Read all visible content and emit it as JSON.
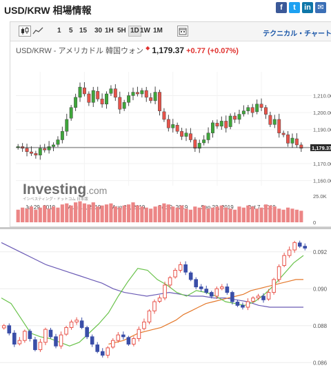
{
  "page_title": "USD/KRW 相場情報",
  "share_icons": [
    "facebook-icon",
    "twitter-icon",
    "linkedin-icon",
    "email-icon"
  ],
  "toolbar": {
    "timeframes": [
      "1",
      "5",
      "15",
      "30",
      "1H",
      "5H",
      "1D",
      "1W",
      "1M"
    ],
    "active_timeframe": "1D",
    "tech_link": "テクニカル・チャート"
  },
  "quote": {
    "name": "USD/KRW - アメリカドル 韓国ウォン",
    "price": "1,179.37",
    "change": "+0.77",
    "change_pct": "(+0.07%)"
  },
  "watermark": {
    "brand": "Investing",
    "suffix": ".com",
    "sub": "インベスティング・ドットコム 日本版"
  },
  "colors": {
    "up": "#e8534a",
    "down": "#3ea63a",
    "volume": "#ec8686",
    "accent": "#1a56a8"
  },
  "chart_data": [
    {
      "type": "candlestick",
      "title": "USD/KRW",
      "x_ticks": [
        "Jul 29, 2019",
        "Aug 12, 2019",
        "Aug 26, 2019",
        "Sep 9, 2019",
        "Sep 23, 2019",
        "Oct 7, 2019"
      ],
      "y_ticks": [
        1160,
        1170,
        1180,
        1190,
        1200,
        1210
      ],
      "y_tick_labels": [
        "1,160.00",
        "1,170.00",
        "1,180.00",
        "1,190.00",
        "1,200.00",
        "1,210.00"
      ],
      "last_price_label": "1,179.37",
      "last_price": 1179.37,
      "ylim": [
        1157,
        1224
      ],
      "closes": [
        1180,
        1179,
        1177,
        1176,
        1175,
        1179,
        1178,
        1180,
        1181,
        1184,
        1189,
        1196,
        1203,
        1209,
        1215,
        1211,
        1206,
        1213,
        1208,
        1205,
        1211,
        1214,
        1209,
        1202,
        1206,
        1210,
        1212,
        1211,
        1213,
        1209,
        1207,
        1212,
        1201,
        1196,
        1191,
        1193,
        1189,
        1186,
        1188,
        1184,
        1179,
        1182,
        1184,
        1188,
        1194,
        1192,
        1195,
        1191,
        1198,
        1196,
        1199,
        1201,
        1203,
        1200,
        1205,
        1203,
        1199,
        1193,
        1196,
        1188,
        1187,
        1182,
        1185,
        1181,
        1179
      ],
      "volume_label": "25.0K",
      "volume_ylim": [
        0,
        25
      ],
      "volumes": [
        12,
        14,
        13,
        15,
        12,
        14,
        16,
        13,
        15,
        14,
        17,
        18,
        16,
        19,
        20,
        18,
        17,
        19,
        15,
        16,
        17,
        18,
        15,
        14,
        16,
        17,
        19,
        16,
        15,
        14,
        13,
        15,
        16,
        18,
        17,
        15,
        14,
        16,
        13,
        12,
        15,
        14,
        16,
        13,
        14,
        15,
        16,
        14,
        13,
        12,
        15,
        14,
        16,
        15,
        13,
        14,
        17,
        16,
        15,
        13,
        12,
        14,
        13,
        12,
        11
      ],
      "volume_zero_label": "0"
    },
    {
      "type": "candlestick",
      "y_ticks": [
        0.086,
        0.088,
        0.09,
        0.092
      ],
      "y_tick_labels": [
        "0.086",
        "0.088",
        "0.090",
        "0.092"
      ],
      "ylim": [
        0.0853,
        0.093
      ],
      "closes": [
        0.088,
        0.0876,
        0.087,
        0.0872,
        0.0877,
        0.0873,
        0.0867,
        0.0871,
        0.0878,
        0.0874,
        0.0869,
        0.0875,
        0.0879,
        0.0882,
        0.0883,
        0.0879,
        0.0874,
        0.087,
        0.0866,
        0.0864,
        0.0868,
        0.0872,
        0.0875,
        0.0874,
        0.087,
        0.0873,
        0.0878,
        0.0882,
        0.0888,
        0.0893,
        0.0895,
        0.0902,
        0.0906,
        0.091,
        0.0913,
        0.0909,
        0.0905,
        0.0901,
        0.09,
        0.0898,
        0.0896,
        0.09,
        0.0901,
        0.0898,
        0.0893,
        0.0891,
        0.089,
        0.0893,
        0.0895,
        0.0896,
        0.0894,
        0.0898,
        0.0905,
        0.0912,
        0.0918,
        0.0921,
        0.0925,
        0.0923,
        0.0922
      ],
      "series": [
        {
          "color": "#6a5ab5",
          "values": [
            0.0925,
            0.0922,
            0.0919,
            0.0916,
            0.0913,
            0.0911,
            0.0909,
            0.0907,
            0.0905,
            0.0903,
            0.09,
            0.0898,
            0.0897,
            0.0896,
            0.0897,
            0.0898,
            0.0897,
            0.0896,
            0.0896,
            0.0895,
            0.0895,
            0.0894,
            0.0893,
            0.0891,
            0.089,
            0.089,
            0.089,
            0.089
          ]
        },
        {
          "color": "#e4782a",
          "values": [
            0.087,
            0.0871,
            0.0872,
            0.0874,
            0.0876,
            0.0877,
            0.0878,
            0.0879,
            0.0881,
            0.0883,
            0.0886,
            0.0888,
            0.089,
            0.0892,
            0.0893,
            0.0894,
            0.0895,
            0.0896,
            0.0897,
            0.0899,
            0.09,
            0.0901,
            0.0902,
            0.0903,
            0.0904,
            0.0905,
            0.0905
          ]
        },
        {
          "color": "#69c24a",
          "values": [
            0.0895,
            0.0892,
            0.0884,
            0.0876,
            0.0874,
            0.0873,
            0.0871,
            0.0869,
            0.0871,
            0.0876,
            0.0881,
            0.0887,
            0.0896,
            0.0904,
            0.0911,
            0.091,
            0.0905,
            0.0902,
            0.0898,
            0.0896,
            0.0899,
            0.0898,
            0.0896,
            0.0893,
            0.0892,
            0.0891,
            0.0893,
            0.0897,
            0.0902,
            0.0908,
            0.0914,
            0.0918
          ]
        }
      ]
    }
  ]
}
